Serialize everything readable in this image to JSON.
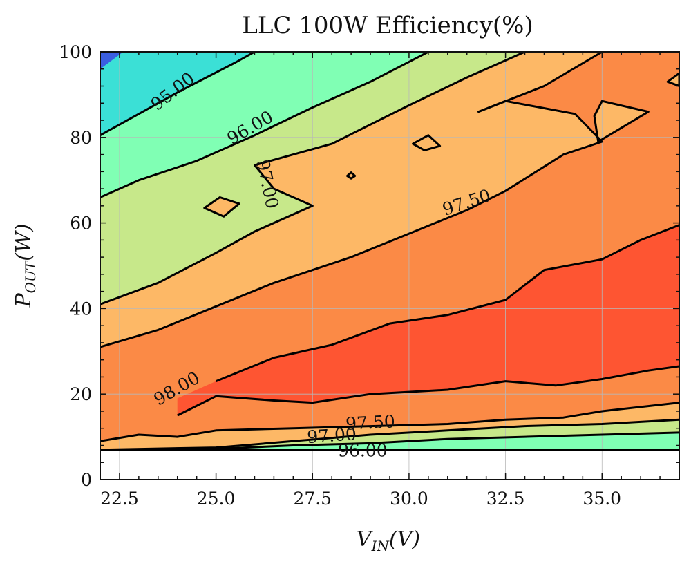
{
  "chart_data": {
    "type": "contour",
    "title": "LLC 100W Efficiency(%)",
    "xlabel": {
      "main": "V",
      "sub": "IN",
      "unit": "(V)"
    },
    "ylabel": {
      "main": "P",
      "sub": "OUT",
      "unit": "(W)"
    },
    "xlim": [
      22,
      37
    ],
    "ylim": [
      0,
      100
    ],
    "xticks": [
      "22.5",
      "25.0",
      "27.5",
      "30.0",
      "32.5",
      "35.0"
    ],
    "yticks": [
      "0",
      "20",
      "40",
      "60",
      "80",
      "100"
    ],
    "grid": true,
    "contour_levels": [
      94.0,
      95.0,
      96.0,
      97.0,
      97.5,
      98.0
    ],
    "contour_labels": [
      "95.00",
      "96.00",
      "97.00",
      "97.50",
      "98.00",
      "97.50",
      "97.00",
      "96.00"
    ],
    "region_colors": {
      "below_94": "#3b5fe0",
      "94_95": "#3be0d6",
      "95_96": "#80ffb4",
      "96_97": "#c7e88a",
      "97_97.5": "#fdb866",
      "97.5_98": "#fb8a46",
      "above_98": "#fe5532"
    },
    "contours": [
      {
        "level": 95.0,
        "points": [
          [
            22.0,
            80.5
          ],
          [
            23.0,
            85.5
          ],
          [
            24.0,
            90.5
          ],
          [
            25.5,
            97.5
          ],
          [
            26.0,
            100.0
          ]
        ]
      },
      {
        "level": 96.0,
        "points": [
          [
            22.0,
            66.0
          ],
          [
            23.0,
            70.0
          ],
          [
            24.5,
            74.5
          ],
          [
            26.0,
            80.5
          ],
          [
            27.5,
            87.0
          ],
          [
            29.0,
            93.0
          ],
          [
            30.5,
            100.0
          ]
        ]
      },
      {
        "level": 97.0,
        "points": [
          [
            22.0,
            41.0
          ],
          [
            23.5,
            46.0
          ],
          [
            25.0,
            53.0
          ],
          [
            26.0,
            58.0
          ],
          [
            27.5,
            64.0
          ],
          [
            26.5,
            68.0
          ],
          [
            26.0,
            73.5
          ],
          [
            28.0,
            78.5
          ],
          [
            30.0,
            87.5
          ],
          [
            31.5,
            94.0
          ],
          [
            33.0,
            100.0
          ]
        ]
      },
      {
        "level": 97.5,
        "points": [
          [
            22.0,
            31.0
          ],
          [
            23.5,
            35.0
          ],
          [
            25.0,
            40.5
          ],
          [
            26.5,
            46.0
          ],
          [
            28.5,
            52.0
          ],
          [
            30.0,
            57.5
          ],
          [
            31.5,
            63.0
          ],
          [
            32.5,
            67.5
          ],
          [
            34.0,
            76.0
          ],
          [
            35.0,
            79.0
          ],
          [
            34.3,
            85.5
          ],
          [
            32.5,
            88.5
          ],
          [
            31.8,
            86.0
          ],
          [
            33.5,
            92.0
          ],
          [
            35.0,
            100.0
          ]
        ]
      },
      {
        "level": 98.0,
        "points": [
          [
            24.0,
            15.0
          ],
          [
            25.0,
            19.5
          ],
          [
            26.5,
            18.5
          ],
          [
            27.5,
            18.0
          ],
          [
            29.0,
            20.0
          ],
          [
            31.0,
            21.0
          ],
          [
            32.5,
            23.0
          ],
          [
            33.8,
            22.0
          ],
          [
            35.0,
            23.5
          ],
          [
            36.2,
            25.5
          ],
          [
            37.0,
            26.5
          ]
        ]
      },
      {
        "level": 98.0,
        "points": [
          [
            25.0,
            23.0
          ],
          [
            26.5,
            28.5
          ],
          [
            28.0,
            31.5
          ],
          [
            29.5,
            36.5
          ],
          [
            31.0,
            38.5
          ],
          [
            32.5,
            42.0
          ],
          [
            33.5,
            49.0
          ],
          [
            35.0,
            51.5
          ],
          [
            36.0,
            56.0
          ],
          [
            37.0,
            59.5
          ]
        ]
      },
      {
        "level": 97.5,
        "points": [
          [
            22.0,
            9.0
          ],
          [
            23.0,
            10.5
          ],
          [
            24.0,
            10.0
          ],
          [
            25.0,
            11.5
          ],
          [
            27.0,
            12.0
          ],
          [
            29.0,
            12.5
          ],
          [
            31.0,
            13.0
          ],
          [
            32.5,
            14.0
          ],
          [
            34.0,
            14.5
          ],
          [
            35.0,
            16.0
          ],
          [
            36.5,
            17.5
          ],
          [
            37.0,
            18.0
          ]
        ]
      },
      {
        "level": 97.0,
        "points": [
          [
            22.0,
            7.0
          ],
          [
            25.0,
            7.5
          ],
          [
            27.0,
            9.0
          ],
          [
            29.0,
            10.5
          ],
          [
            31.0,
            11.5
          ],
          [
            33.0,
            12.5
          ],
          [
            35.0,
            13.0
          ],
          [
            37.0,
            14.0
          ]
        ]
      },
      {
        "level": 96.0,
        "points": [
          [
            24.5,
            7.0
          ],
          [
            27.0,
            8.0
          ],
          [
            29.0,
            8.5
          ],
          [
            31.0,
            9.5
          ],
          [
            33.0,
            10.0
          ],
          [
            35.0,
            10.5
          ],
          [
            37.0,
            11.0
          ]
        ]
      },
      {
        "level": 94.0,
        "points": [
          [
            22.0,
            7.0
          ],
          [
            37.0,
            7.0
          ]
        ]
      }
    ],
    "islands": [
      {
        "level": 97.5,
        "points": [
          [
            24.7,
            63.5
          ],
          [
            25.1,
            66.0
          ],
          [
            25.6,
            64.5
          ],
          [
            25.2,
            61.5
          ]
        ]
      },
      {
        "level": 97.5,
        "points": [
          [
            30.1,
            78.5
          ],
          [
            30.5,
            80.5
          ],
          [
            30.8,
            78.0
          ],
          [
            30.4,
            77.0
          ]
        ]
      },
      {
        "level": 97.5,
        "points": [
          [
            28.4,
            71.0
          ],
          [
            28.5,
            71.8
          ],
          [
            28.6,
            71.0
          ],
          [
            28.5,
            70.4
          ]
        ]
      },
      {
        "level": 97.5,
        "points": [
          [
            34.8,
            85.0
          ],
          [
            35.0,
            88.5
          ],
          [
            36.2,
            86.0
          ],
          [
            34.9,
            79.0
          ]
        ]
      },
      {
        "level": 97.5,
        "points": [
          [
            36.7,
            93.0
          ],
          [
            37.0,
            95.0
          ],
          [
            37.0,
            92.0
          ]
        ]
      }
    ],
    "label_positions": [
      {
        "text": "95.00",
        "x": 23.9,
        "y": 90.5
      },
      {
        "text": "96.00",
        "x": 25.9,
        "y": 82.0
      },
      {
        "text": "97.00",
        "x": 26.3,
        "y": 69.0
      },
      {
        "text": "97.50",
        "x": 31.5,
        "y": 64.5
      },
      {
        "text": "98.00",
        "x": 24.0,
        "y": 21.0
      },
      {
        "text": "97.50",
        "x": 29.0,
        "y": 13.0
      },
      {
        "text": "97.00",
        "x": 28.0,
        "y": 10.0
      },
      {
        "text": "96.00",
        "x": 28.8,
        "y": 6.5
      }
    ]
  }
}
